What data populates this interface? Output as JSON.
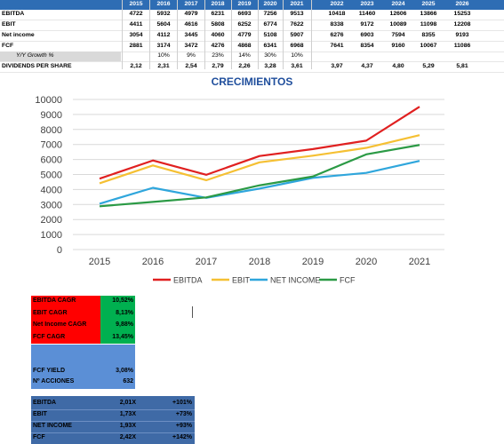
{
  "table": {
    "years": [
      "2015",
      "2016",
      "2017",
      "2018",
      "2019",
      "2020",
      "2021",
      "2022",
      "2023",
      "2024",
      "2025",
      "2026"
    ],
    "rows": [
      {
        "label": "EBITDA",
        "values": [
          "4722",
          "5932",
          "4979",
          "6231",
          "6693",
          "7256",
          "9513",
          "10418",
          "11460",
          "12606",
          "13866",
          "15253"
        ]
      },
      {
        "label": "EBIT",
        "values": [
          "4411",
          "5604",
          "4616",
          "5808",
          "6252",
          "6774",
          "7622",
          "8338",
          "9172",
          "10089",
          "11098",
          "12208"
        ]
      },
      {
        "label": "Net income",
        "values": [
          "3054",
          "4112",
          "3445",
          "4060",
          "4779",
          "5108",
          "5907",
          "6276",
          "6903",
          "7594",
          "8355",
          "9193"
        ]
      },
      {
        "label": "FCF",
        "values": [
          "2881",
          "3174",
          "3472",
          "4276",
          "4868",
          "6341",
          "6968",
          "7641",
          "8354",
          "9160",
          "10067",
          "11086"
        ]
      },
      {
        "label": "Y/Y Growth %",
        "values": [
          "",
          "10%",
          "9%",
          "23%",
          "14%",
          "30%",
          "10%",
          "",
          "",
          "",
          "",
          ""
        ]
      },
      {
        "label": "DIVIDENDS PER SHARE",
        "values": [
          "2,12",
          "2,31",
          "2,54",
          "2,79",
          "2,26",
          "3,28",
          "3,61",
          "3,97",
          "4,37",
          "4,80",
          "5,29",
          "5,81"
        ]
      }
    ]
  },
  "chart_data": {
    "type": "line",
    "title": "CRECIMIENTOS",
    "x": [
      2015,
      2016,
      2017,
      2018,
      2019,
      2020,
      2021
    ],
    "ylim": [
      0,
      10000
    ],
    "yticks": [
      "0",
      "1000",
      "2000",
      "3000",
      "4000",
      "5000",
      "6000",
      "7000",
      "8000",
      "9000",
      "10000"
    ],
    "grid": true,
    "legend_position": "bottom",
    "series": [
      {
        "name": "EBITDA",
        "color": "#e02020",
        "values": [
          4722,
          5932,
          4979,
          6231,
          6693,
          7256,
          9513
        ]
      },
      {
        "name": "EBIT",
        "color": "#f5c033",
        "values": [
          4411,
          5604,
          4616,
          5808,
          6252,
          6774,
          7622
        ]
      },
      {
        "name": "NET INCOME",
        "color": "#2fa6dc",
        "values": [
          3054,
          4112,
          3445,
          4060,
          4779,
          5108,
          5907
        ]
      },
      {
        "name": "FCF",
        "color": "#2b9a45",
        "values": [
          2881,
          3174,
          3472,
          4276,
          4868,
          6341,
          6968
        ]
      }
    ]
  },
  "cagr": [
    {
      "label": "EBITDA CAGR",
      "value": "10,52%"
    },
    {
      "label": "EBIT CAGR",
      "value": "8,13%"
    },
    {
      "label": "Net Income CAGR",
      "value": "9,88%"
    },
    {
      "label": "FCF CAGR",
      "value": "13,45%"
    }
  ],
  "yield_box": [
    {
      "label": "FCF YIELD",
      "value": "3,08%"
    },
    {
      "label": "Nº ACCIONES",
      "value": "632"
    }
  ],
  "multiples": [
    {
      "label": "EBITDA",
      "mult": "2,01X",
      "pct": "+101%"
    },
    {
      "label": "EBIT",
      "mult": "1,73X",
      "pct": "+73%"
    },
    {
      "label": "NET INCOME",
      "mult": "1,93X",
      "pct": "+93%"
    },
    {
      "label": "FCF",
      "mult": "2,42X",
      "pct": "+142%"
    }
  ],
  "colors": {
    "header": "#2e6db4",
    "cagr_label_bg": "#ff0000",
    "cagr_value_bg": "#00b050",
    "yield_bg": "#5b8fd6",
    "multiples_bg": "#3f6aa6"
  }
}
